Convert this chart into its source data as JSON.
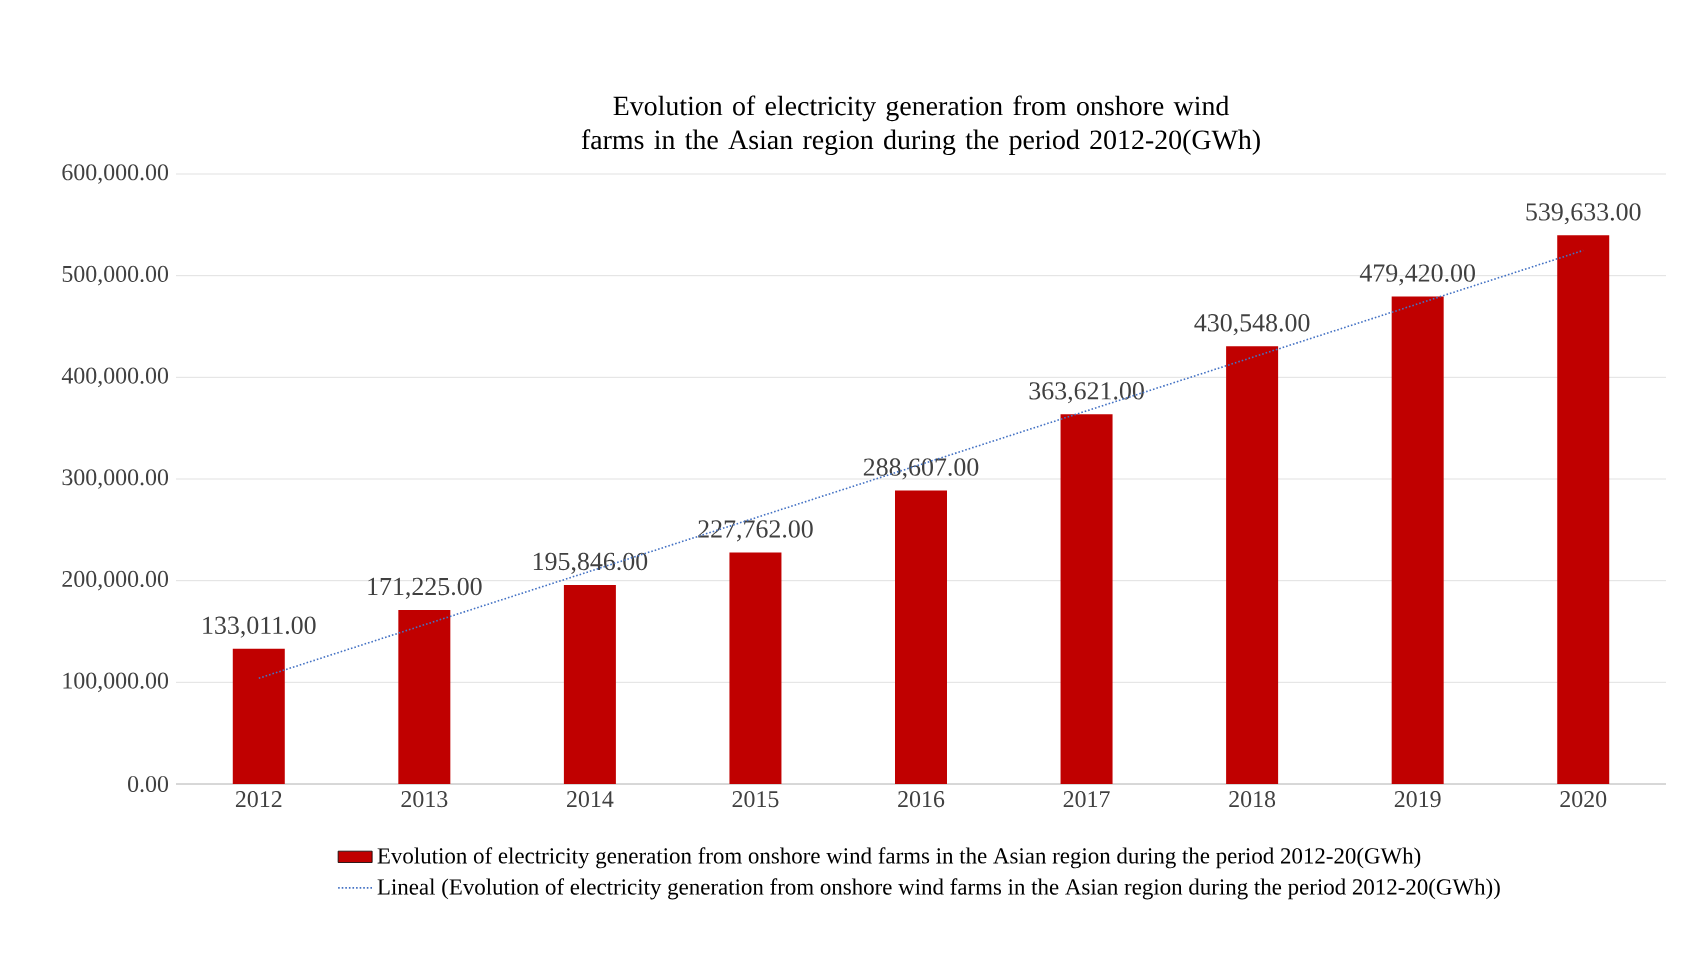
{
  "chart_data": {
    "type": "bar",
    "title": "Evolution of electricity generation from onshore wind farms in the Asian region during the period 2012-20(GWh)",
    "categories": [
      "2012",
      "2013",
      "2014",
      "2015",
      "2016",
      "2017",
      "2018",
      "2019",
      "2020"
    ],
    "series": [
      {
        "name": "Evolution of electricity generation from onshore wind farms in the Asian region during the period 2012-20(GWh)",
        "color": "#c00000",
        "values": [
          133011,
          171225,
          195846,
          227762,
          288607,
          363621,
          430548,
          479420,
          539633
        ],
        "value_labels": [
          "133,011.00",
          "171,225.00",
          "195,846.00",
          "227,762.00",
          "288,607.00",
          "363,621.00",
          "430,548.00",
          "479,420.00",
          "539,633.00"
        ]
      },
      {
        "name": "Lineal (Evolution of electricity generation from onshore wind farms in the Asian region during the period 2012-20(GWh))",
        "type": "line",
        "line_style": "dotted",
        "color": "#4472c4",
        "values": [
          104000,
          156600,
          209200,
          261800,
          314400,
          367000,
          419600,
          472200,
          524800
        ]
      }
    ],
    "ylim": [
      0,
      600000
    ],
    "yticks": [
      {
        "value": 0,
        "label": "0.00"
      },
      {
        "value": 100000,
        "label": "100,000.00"
      },
      {
        "value": 200000,
        "label": "200,000.00"
      },
      {
        "value": 300000,
        "label": "300,000.00"
      },
      {
        "value": 400000,
        "label": "400,000.00"
      },
      {
        "value": 500000,
        "label": "500,000.00"
      },
      {
        "value": 600000,
        "label": "600,000.00"
      }
    ],
    "grid": "y",
    "legend": "bottom"
  }
}
